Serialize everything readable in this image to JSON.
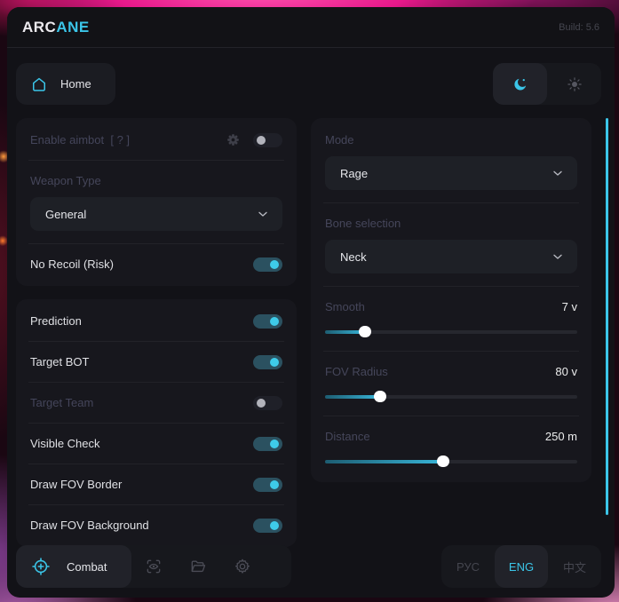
{
  "app": {
    "brand_prefix": "ARC",
    "brand_suffix": "ANE",
    "build": "Build: 5.6"
  },
  "nav": {
    "home_label": "Home",
    "theme": {
      "dark": {
        "selected": true
      },
      "light": {
        "selected": false
      }
    }
  },
  "aimbot_panel": {
    "enable_label": "Enable aimbot",
    "enable_hint": "[ ? ]",
    "enable_toggle": {
      "on": false
    },
    "weapon_type_label": "Weapon Type",
    "weapon_type_value": "General",
    "no_recoil": {
      "label": "No Recoil (Risk)",
      "on": true
    }
  },
  "toggles_panel": {
    "rows": [
      {
        "label": "Prediction",
        "on": true,
        "muted": false
      },
      {
        "label": "Target BOT",
        "on": true,
        "muted": false
      },
      {
        "label": "Target Team",
        "on": false,
        "muted": true
      },
      {
        "label": "Visible Check",
        "on": true,
        "muted": false
      },
      {
        "label": "Draw FOV Border",
        "on": true,
        "muted": false
      },
      {
        "label": "Draw FOV Background",
        "on": true,
        "muted": false
      }
    ]
  },
  "settings_panel": {
    "mode_label": "Mode",
    "mode_value": "Rage",
    "bone_label": "Bone selection",
    "bone_value": "Neck",
    "sliders": [
      {
        "label": "Smooth",
        "value": "7 v",
        "percent": 16
      },
      {
        "label": "FOV Radius",
        "value": "80 v",
        "percent": 22
      },
      {
        "label": "Distance",
        "value": "250 m",
        "percent": 47
      }
    ]
  },
  "footer": {
    "combat_label": "Combat",
    "languages": [
      {
        "label": "РУС",
        "selected": false
      },
      {
        "label": "ENG",
        "selected": true
      },
      {
        "label": "中文",
        "selected": false
      }
    ]
  },
  "colors": {
    "accent": "#3bc5e8",
    "toggle_on_track": "#2b5160",
    "toggle_on_knob": "#3ecbe9",
    "panel_bg": "#17171d",
    "window_bg": "#121217",
    "muted_text": "#45465a"
  }
}
